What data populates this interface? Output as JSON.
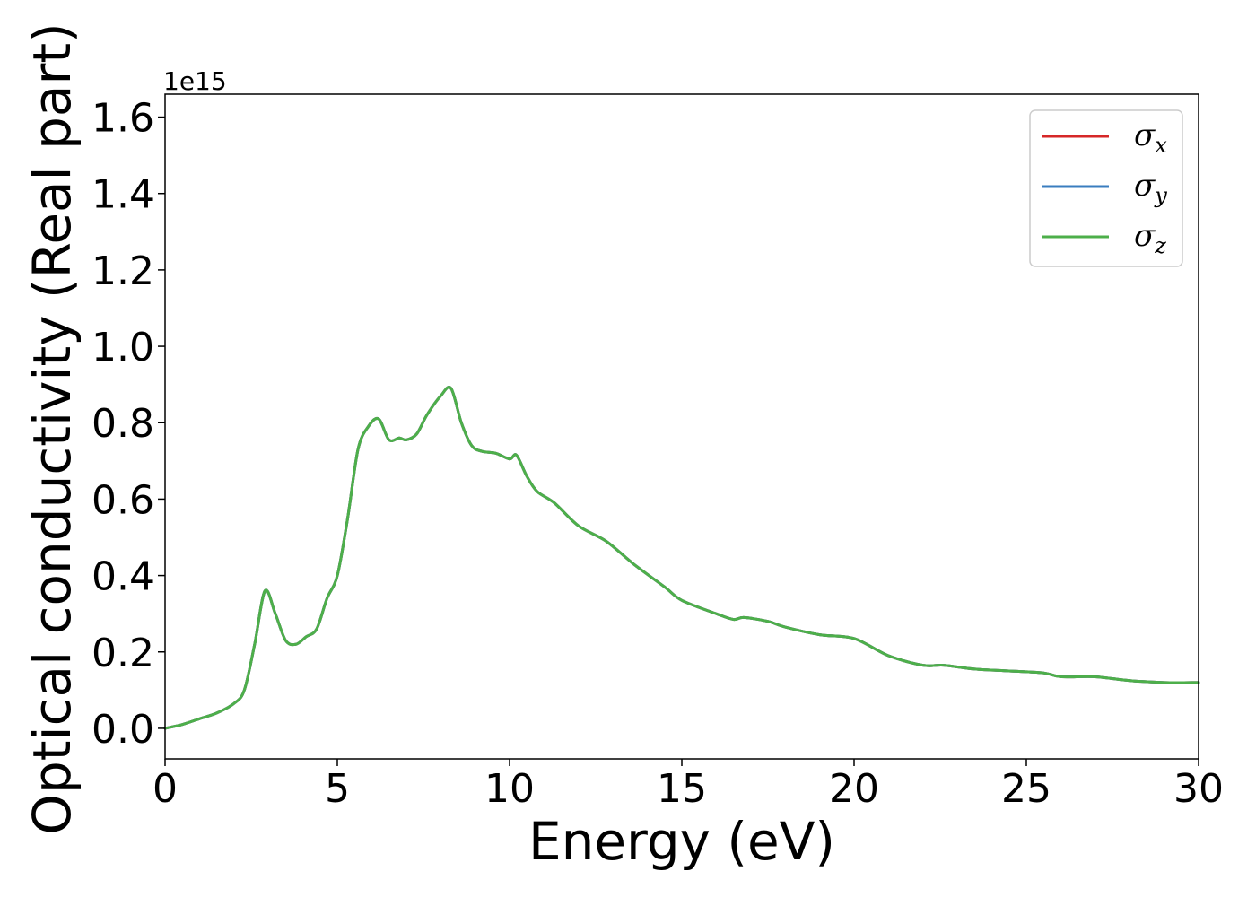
{
  "chart_data": {
    "type": "line",
    "xlabel": "Energy (eV)",
    "ylabel": "Optical conductivity (Real part)",
    "y_offset_text": "1e15",
    "xlim": [
      0,
      30
    ],
    "ylim": [
      -0.08,
      1.66
    ],
    "x_ticks": [
      0,
      5,
      10,
      15,
      20,
      25,
      30
    ],
    "y_ticks": [
      0.0,
      0.2,
      0.4,
      0.6,
      0.8,
      1.0,
      1.2,
      1.4,
      1.6
    ],
    "x_tick_labels": [
      "0",
      "5",
      "10",
      "15",
      "20",
      "25",
      "30"
    ],
    "y_tick_labels": [
      "0.0",
      "0.2",
      "0.4",
      "0.6",
      "0.8",
      "1.0",
      "1.2",
      "1.4",
      "1.6"
    ],
    "grid": false,
    "legend_position": "top-right",
    "series": [
      {
        "name": "σx",
        "name_base": "σ",
        "name_sub": "x",
        "color": "#d62728",
        "x": [
          0,
          0.5,
          1.0,
          1.5,
          2.0,
          2.3,
          2.6,
          2.9,
          3.2,
          3.5,
          3.8,
          4.1,
          4.4,
          4.7,
          5.0,
          5.3,
          5.6,
          5.9,
          6.2,
          6.5,
          6.8,
          7.0,
          7.3,
          7.6,
          8.0,
          8.3,
          8.6,
          8.9,
          9.2,
          9.6,
          10.0,
          10.2,
          10.5,
          10.8,
          11.3,
          12.0,
          12.8,
          13.6,
          14.5,
          15.0,
          16.0,
          16.5,
          16.8,
          17.5,
          18.0,
          19.0,
          20.0,
          21.0,
          22.0,
          22.6,
          23.5,
          24.5,
          25.5,
          26.0,
          27.0,
          28.0,
          29.0,
          30.0
        ],
        "y": [
          0.0,
          0.01,
          0.025,
          0.04,
          0.065,
          0.1,
          0.22,
          0.36,
          0.3,
          0.23,
          0.22,
          0.24,
          0.26,
          0.34,
          0.4,
          0.55,
          0.73,
          0.79,
          0.81,
          0.755,
          0.76,
          0.755,
          0.77,
          0.82,
          0.87,
          0.89,
          0.8,
          0.74,
          0.725,
          0.72,
          0.705,
          0.715,
          0.66,
          0.62,
          0.59,
          0.53,
          0.49,
          0.43,
          0.37,
          0.335,
          0.3,
          0.285,
          0.29,
          0.28,
          0.265,
          0.245,
          0.235,
          0.19,
          0.165,
          0.165,
          0.155,
          0.15,
          0.145,
          0.135,
          0.135,
          0.125,
          0.12,
          0.12
        ]
      },
      {
        "name": "σy",
        "name_base": "σ",
        "name_sub": "y",
        "color": "#3a7dbf",
        "x": [
          0,
          0.5,
          1.0,
          1.5,
          2.0,
          2.3,
          2.6,
          2.9,
          3.2,
          3.5,
          3.8,
          4.1,
          4.4,
          4.7,
          5.0,
          5.3,
          5.6,
          5.9,
          6.2,
          6.5,
          6.8,
          7.0,
          7.3,
          7.6,
          8.0,
          8.3,
          8.6,
          8.9,
          9.2,
          9.6,
          10.0,
          10.2,
          10.5,
          10.8,
          11.3,
          12.0,
          12.8,
          13.6,
          14.5,
          15.0,
          16.0,
          16.5,
          16.8,
          17.5,
          18.0,
          19.0,
          20.0,
          21.0,
          22.0,
          22.6,
          23.5,
          24.5,
          25.5,
          26.0,
          27.0,
          28.0,
          29.0,
          30.0
        ],
        "y": [
          0.0,
          0.01,
          0.025,
          0.04,
          0.065,
          0.1,
          0.22,
          0.36,
          0.3,
          0.23,
          0.22,
          0.24,
          0.26,
          0.34,
          0.4,
          0.55,
          0.73,
          0.79,
          0.81,
          0.755,
          0.76,
          0.755,
          0.77,
          0.82,
          0.87,
          0.89,
          0.8,
          0.74,
          0.725,
          0.72,
          0.705,
          0.715,
          0.66,
          0.62,
          0.59,
          0.53,
          0.49,
          0.43,
          0.37,
          0.335,
          0.3,
          0.285,
          0.29,
          0.28,
          0.265,
          0.245,
          0.235,
          0.19,
          0.165,
          0.165,
          0.155,
          0.15,
          0.145,
          0.135,
          0.135,
          0.125,
          0.12,
          0.12
        ]
      },
      {
        "name": "σz",
        "name_base": "σ",
        "name_sub": "z",
        "color": "#4daf4a",
        "x": [
          0,
          0.5,
          1.0,
          1.5,
          2.0,
          2.3,
          2.6,
          2.9,
          3.2,
          3.5,
          3.8,
          4.1,
          4.4,
          4.7,
          5.0,
          5.3,
          5.6,
          5.9,
          6.2,
          6.5,
          6.8,
          7.0,
          7.3,
          7.6,
          8.0,
          8.3,
          8.6,
          8.9,
          9.2,
          9.6,
          10.0,
          10.2,
          10.5,
          10.8,
          11.3,
          12.0,
          12.8,
          13.6,
          14.5,
          15.0,
          16.0,
          16.5,
          16.8,
          17.5,
          18.0,
          19.0,
          20.0,
          21.0,
          22.0,
          22.6,
          23.5,
          24.5,
          25.5,
          26.0,
          27.0,
          28.0,
          29.0,
          30.0
        ],
        "y": [
          0.0,
          0.01,
          0.025,
          0.04,
          0.065,
          0.1,
          0.22,
          0.36,
          0.3,
          0.23,
          0.22,
          0.24,
          0.26,
          0.34,
          0.4,
          0.55,
          0.73,
          0.79,
          0.81,
          0.755,
          0.76,
          0.755,
          0.77,
          0.82,
          0.87,
          0.89,
          0.8,
          0.74,
          0.725,
          0.72,
          0.705,
          0.715,
          0.66,
          0.62,
          0.59,
          0.53,
          0.49,
          0.43,
          0.37,
          0.335,
          0.3,
          0.285,
          0.29,
          0.28,
          0.265,
          0.245,
          0.235,
          0.19,
          0.165,
          0.165,
          0.155,
          0.15,
          0.145,
          0.135,
          0.135,
          0.125,
          0.12,
          0.12
        ]
      }
    ]
  }
}
